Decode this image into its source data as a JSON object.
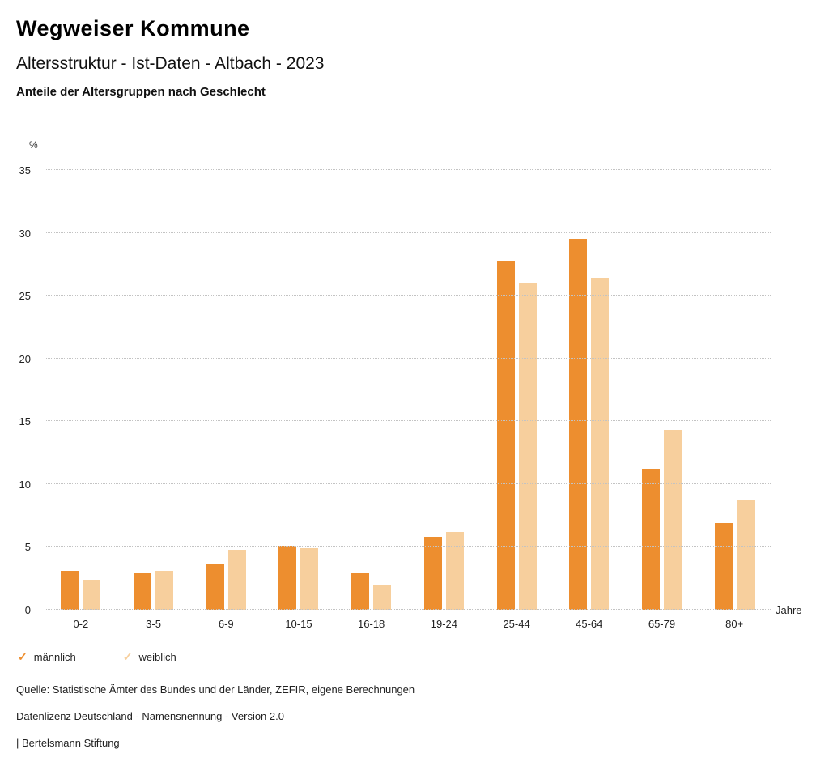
{
  "header": {
    "title": "Wegweiser Kommune",
    "subtitle": "Altersstruktur - Ist-Daten - Altbach - 2023",
    "subsubtitle": "Anteile der Altersgruppen nach Geschlecht"
  },
  "chart_data": {
    "type": "bar",
    "title": "Anteile der Altersgruppen nach Geschlecht",
    "y_unit_label": "%",
    "x_unit_label": "Jahre",
    "categories": [
      "0-2",
      "3-5",
      "6-9",
      "10-15",
      "16-18",
      "19-24",
      "25-44",
      "45-64",
      "65-79",
      "80+"
    ],
    "series": [
      {
        "name": "männlich",
        "color": "#ED8E2F",
        "values": [
          3.1,
          2.9,
          3.6,
          5.1,
          2.9,
          5.8,
          27.8,
          29.5,
          11.2,
          6.9
        ]
      },
      {
        "name": "weiblich",
        "color": "#F7CF9D",
        "values": [
          2.4,
          3.1,
          4.8,
          4.9,
          2.0,
          6.2,
          26.0,
          26.4,
          14.3,
          8.7
        ]
      }
    ],
    "ylim": [
      0,
      35
    ],
    "yticks": [
      0,
      5,
      10,
      15,
      20,
      25,
      30,
      35
    ],
    "grid": true,
    "legend_position": "bottom"
  },
  "legend": {
    "items": [
      {
        "label": "männlich",
        "color": "#ED8E2F",
        "icon": "check"
      },
      {
        "label": "weiblich",
        "color": "#F7CF9D",
        "icon": "check"
      }
    ],
    "check_glyph": "✓"
  },
  "footer": {
    "source": "Quelle: Statistische Ämter des Bundes und der Länder, ZEFIR, eigene Berechnungen",
    "license": "Datenlizenz Deutschland - Namensnennung - Version 2.0",
    "attribution": "| Bertelsmann Stiftung"
  }
}
